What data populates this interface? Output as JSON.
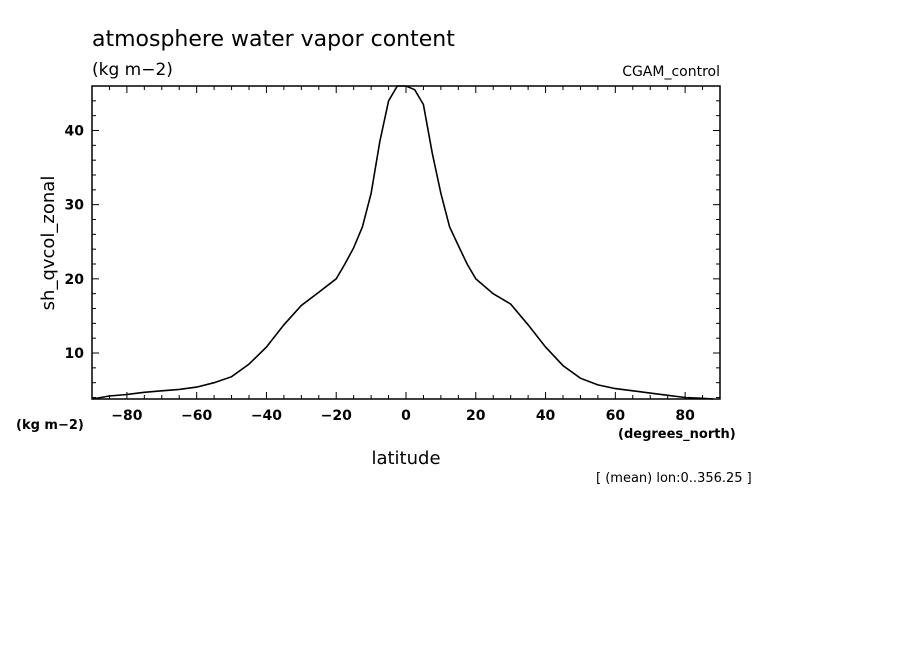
{
  "chart_data": {
    "type": "line",
    "title": "atmosphere water vapor content",
    "subtitle": "(kg m−2)",
    "run_label": "CGAM_control",
    "xlabel": "latitude",
    "x_units": "(degrees_north)",
    "ylabel": "sh_qvcol_zonal",
    "y_units": "(kg m−2)",
    "footnote": "[ (mean) lon:0..356.25 ]",
    "xlim": [
      -90,
      90
    ],
    "ylim": [
      3.8,
      46
    ],
    "x_ticks": [
      -80,
      -60,
      -40,
      -20,
      0,
      20,
      40,
      60,
      80
    ],
    "x_tick_labels": [
      "−80",
      "−60",
      "−40",
      "−20",
      "0",
      "20",
      "40",
      "60",
      "80"
    ],
    "y_ticks": [
      10,
      20,
      30,
      40
    ],
    "y_tick_labels": [
      "10",
      "20",
      "30",
      "40"
    ],
    "grid": false,
    "series": [
      {
        "name": "sh_qvcol_zonal",
        "x": [
          -90,
          -85,
          -80,
          -75,
          -70,
          -65,
          -60,
          -55,
          -50,
          -45,
          -40,
          -35,
          -30,
          -25,
          -20,
          -17.5,
          -15,
          -12.5,
          -10,
          -7.5,
          -5,
          -2.5,
          0,
          2.5,
          5,
          7.5,
          10,
          12.5,
          15,
          17.5,
          20,
          25,
          30,
          35,
          40,
          45,
          50,
          55,
          60,
          65,
          70,
          75,
          80,
          85,
          88
        ],
        "y": [
          3.8,
          4.2,
          4.4,
          4.7,
          4.9,
          5.1,
          5.4,
          6.0,
          6.8,
          8.5,
          10.8,
          13.8,
          16.4,
          18.2,
          20.0,
          22.0,
          24.2,
          27.0,
          31.5,
          38.5,
          44.0,
          46.0,
          46.0,
          45.5,
          43.5,
          37.0,
          31.5,
          27.0,
          24.5,
          22.0,
          20.0,
          18.0,
          16.6,
          13.8,
          10.8,
          8.3,
          6.6,
          5.7,
          5.2,
          4.9,
          4.6,
          4.3,
          4.0,
          3.9,
          3.8
        ]
      }
    ]
  }
}
